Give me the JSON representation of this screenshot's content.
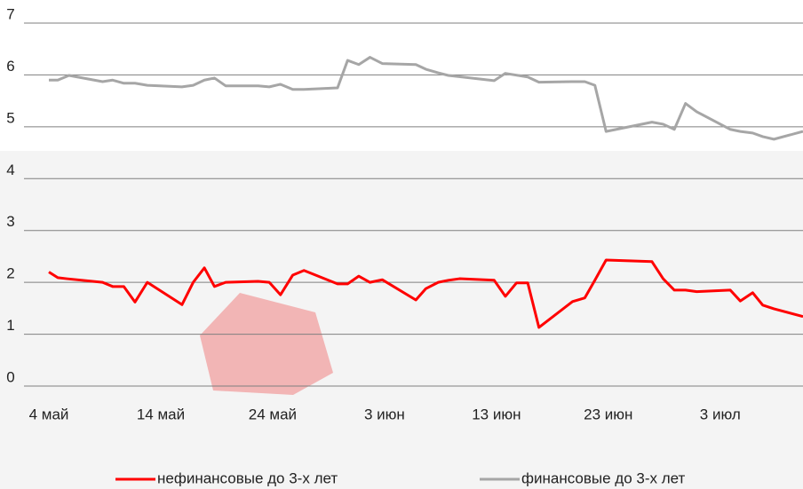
{
  "chart_data": {
    "type": "line",
    "xlim": [
      0,
      67.4
    ],
    "xticks": [
      {
        "value": 0,
        "label": "4 май"
      },
      {
        "value": 10,
        "label": "14 май"
      },
      {
        "value": 20,
        "label": "24 май"
      },
      {
        "value": 30,
        "label": "3 июн"
      },
      {
        "value": 40,
        "label": "13 июн"
      },
      {
        "value": 50,
        "label": "23 июн"
      },
      {
        "value": 60,
        "label": "3 июл"
      }
    ],
    "ylim": [
      0,
      7
    ],
    "yticks": [
      0,
      1,
      2,
      3,
      4,
      5,
      6,
      7
    ],
    "grid": true,
    "legend": "bottom",
    "series": [
      {
        "name": "нефинансовые до 3-х лет",
        "color": "#ff0000",
        "x": [
          0,
          0.8,
          1.6,
          4.8,
          5.7,
          6.7,
          7.7,
          8.8,
          11.9,
          12.9,
          13.9,
          14.8,
          15.8,
          18.7,
          19.7,
          20.7,
          21.8,
          22.8,
          25.8,
          26.7,
          27.7,
          28.7,
          29.8,
          32.8,
          33.7,
          34.8,
          35.7,
          36.7,
          39.8,
          40.8,
          41.8,
          42.8,
          43.8,
          46.8,
          47.9,
          48.8,
          49.8,
          53.9,
          54.9,
          55.9,
          56.9,
          57.9,
          60.9,
          61.8,
          62.9,
          63.8,
          64.8,
          67.4
        ],
        "values": [
          2.2,
          2.09,
          2.07,
          2.0,
          1.92,
          1.92,
          1.62,
          2.0,
          1.57,
          2.0,
          2.28,
          1.92,
          2.0,
          2.02,
          2.0,
          1.76,
          2.14,
          2.23,
          1.97,
          1.97,
          2.12,
          2.0,
          2.05,
          1.66,
          1.88,
          2.0,
          2.04,
          2.07,
          2.04,
          1.73,
          1.99,
          1.99,
          1.13,
          1.63,
          1.7,
          2.04,
          2.43,
          2.4,
          2.07,
          1.85,
          1.85,
          1.82,
          1.85,
          1.64,
          1.8,
          1.56,
          1.49,
          1.34
        ]
      },
      {
        "name": "финансовые до 3-х лет",
        "color": "#a6a6a6",
        "x": [
          0,
          0.8,
          1.8,
          4.8,
          5.7,
          6.7,
          7.7,
          8.8,
          11.9,
          12.9,
          13.9,
          14.8,
          15.8,
          18.7,
          19.7,
          20.7,
          21.8,
          22.8,
          25.8,
          26.7,
          27.7,
          28.7,
          29.8,
          32.8,
          33.7,
          34.8,
          35.7,
          39.8,
          40.8,
          42.8,
          43.8,
          46.8,
          47.9,
          48.8,
          49.8,
          53.9,
          54.9,
          55.9,
          56.9,
          57.9,
          60.9,
          61.8,
          62.9,
          63.8,
          64.8,
          67.4
        ],
        "values": [
          5.9,
          5.9,
          5.99,
          5.87,
          5.9,
          5.84,
          5.84,
          5.8,
          5.77,
          5.8,
          5.9,
          5.94,
          5.79,
          5.79,
          5.77,
          5.82,
          5.72,
          5.72,
          5.75,
          6.28,
          6.2,
          6.34,
          6.22,
          6.2,
          6.11,
          6.04,
          5.99,
          5.89,
          6.03,
          5.96,
          5.86,
          5.87,
          5.87,
          5.8,
          4.91,
          5.09,
          5.05,
          4.95,
          5.45,
          5.29,
          4.95,
          4.91,
          4.88,
          4.81,
          4.76,
          4.91
        ]
      }
    ]
  }
}
